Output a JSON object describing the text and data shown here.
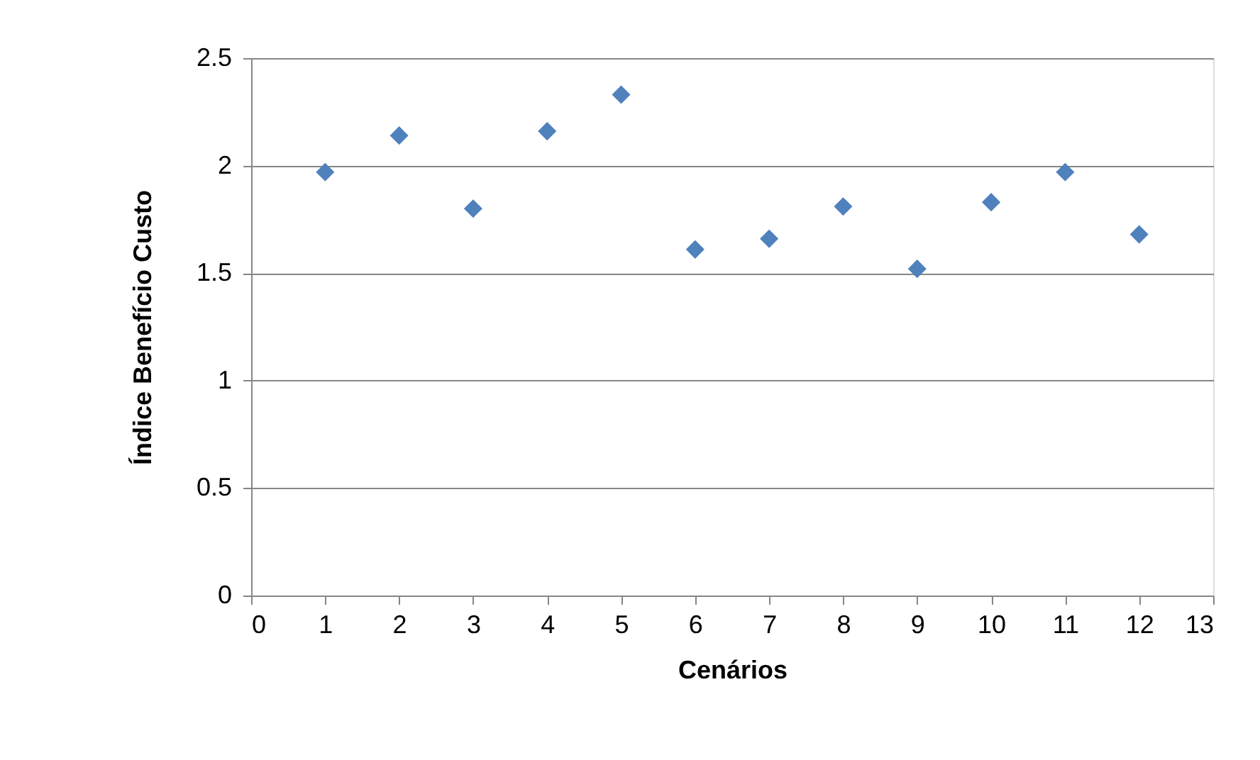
{
  "chart_data": {
    "type": "scatter",
    "xlabel": "Cenários",
    "ylabel": "Índice  Benefício Custo",
    "x": [
      1,
      2,
      3,
      4,
      5,
      6,
      7,
      8,
      9,
      10,
      11,
      12
    ],
    "series": [
      {
        "color": "#4f81bd",
        "values": [
          1.97,
          2.14,
          1.8,
          2.16,
          2.33,
          1.61,
          1.66,
          1.81,
          1.52,
          1.83,
          1.97,
          1.68
        ]
      }
    ],
    "xlim": [
      0,
      13
    ],
    "xticks": [
      0,
      1,
      2,
      3,
      4,
      5,
      6,
      7,
      8,
      9,
      10,
      11,
      12,
      13
    ],
    "ylim": [
      0,
      2.5
    ],
    "yticks": [
      0,
      0.5,
      1,
      1.5,
      2,
      2.5
    ],
    "grid": "y",
    "legend": false,
    "marker": "diamond"
  }
}
